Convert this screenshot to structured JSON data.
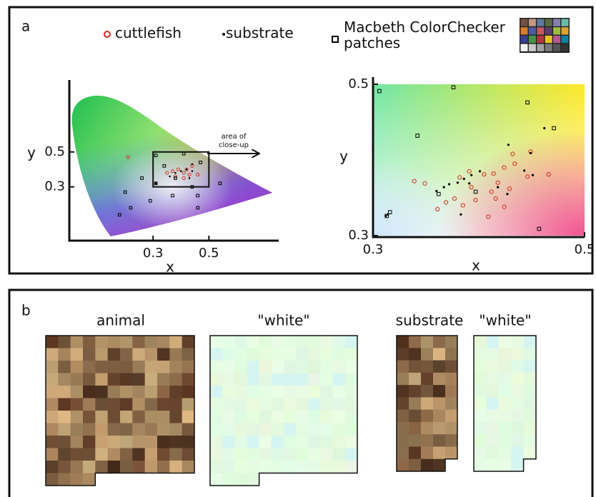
{
  "panel_a": {
    "label": "a",
    "annotation": "area of close-up"
  },
  "panel_b": {
    "label": "b",
    "titles": [
      "animal",
      "\"white\"",
      "substrate",
      "\"white\""
    ]
  },
  "chart_data": [
    {
      "type": "scatter",
      "xlabel": "x",
      "ylabel": "y",
      "xlim": [
        0,
        0.75
      ],
      "ylim": [
        0,
        0.9
      ],
      "xticks": [
        0.3,
        0.5
      ],
      "yticks": [
        0.3,
        0.5
      ],
      "series": [
        {
          "name": "cuttlefish",
          "color": "#d42a1e",
          "marker": "circle",
          "x": [
            0.21,
            0.35,
            0.37,
            0.39,
            0.41,
            0.43,
            0.44,
            0.46,
            0.42,
            0.38,
            0.41
          ],
          "y": [
            0.47,
            0.38,
            0.39,
            0.4,
            0.38,
            0.37,
            0.42,
            0.37,
            0.4,
            0.36,
            0.35
          ]
        },
        {
          "name": "substrate",
          "color": "#000000",
          "marker": "dot",
          "x": [
            0.31,
            0.31,
            0.36,
            0.38,
            0.4,
            0.42,
            0.44,
            0.44,
            0.43
          ],
          "y": [
            0.32,
            0.32,
            0.36,
            0.38,
            0.39,
            0.4,
            0.39,
            0.43,
            0.35
          ]
        },
        {
          "name": "Macbeth ColorChecker patches",
          "color": "#000000",
          "marker": "square",
          "x": [
            0.31,
            0.34,
            0.26,
            0.2,
            0.22,
            0.18,
            0.29,
            0.37,
            0.44,
            0.46,
            0.47,
            0.46,
            0.54,
            0.38,
            0.31,
            0.41
          ],
          "y": [
            0.48,
            0.42,
            0.35,
            0.27,
            0.18,
            0.14,
            0.22,
            0.25,
            0.3,
            0.18,
            0.44,
            0.25,
            0.32,
            0.35,
            0.32,
            0.49
          ]
        }
      ]
    },
    {
      "type": "scatter",
      "xlabel": "x",
      "ylabel": "y",
      "xlim": [
        0.3,
        0.5
      ],
      "ylim": [
        0.3,
        0.5
      ],
      "xticks": [
        0.3,
        0.5
      ],
      "yticks": [
        0.3,
        0.5
      ],
      "series": [
        {
          "color": "#d42a1e",
          "marker": "circle",
          "x": [
            0.339,
            0.349,
            0.382,
            0.391,
            0.405,
            0.414,
            0.424,
            0.412,
            0.416,
            0.393,
            0.432,
            0.449,
            0.466,
            0.446,
            0.361,
            0.369,
            0.424,
            0.409,
            0.385,
            0.397,
            0.434,
            0.418,
            0.377,
            0.429
          ],
          "y": [
            0.372,
            0.369,
            0.377,
            0.385,
            0.381,
            0.382,
            0.39,
            0.358,
            0.349,
            0.364,
            0.408,
            0.411,
            0.381,
            0.378,
            0.335,
            0.344,
            0.338,
            0.325,
            0.34,
            0.347,
            0.395,
            0.37,
            0.349,
            0.362
          ]
        },
        {
          "color": "#000000",
          "marker": "dot",
          "x": [
            0.36,
            0.367,
            0.372,
            0.38,
            0.386,
            0.393,
            0.401,
            0.428,
            0.462,
            0.451,
            0.449,
            0.427,
            0.391,
            0.312,
            0.314,
            0.383,
            0.443,
            0.418
          ],
          "y": [
            0.359,
            0.364,
            0.368,
            0.37,
            0.375,
            0.38,
            0.385,
            0.42,
            0.442,
            0.38,
            0.409,
            0.355,
            0.369,
            0.326,
            0.328,
            0.328,
            0.386,
            0.364
          ]
        },
        {
          "color": "#000000",
          "marker": "square",
          "x": [
            0.306,
            0.376,
            0.446,
            0.471,
            0.342,
            0.397,
            0.362,
            0.457,
            0.316,
            0.313
          ],
          "y": [
            0.491,
            0.496,
            0.476,
            0.442,
            0.432,
            0.358,
            0.355,
            0.309,
            0.331,
            0.326
          ]
        }
      ]
    }
  ]
}
